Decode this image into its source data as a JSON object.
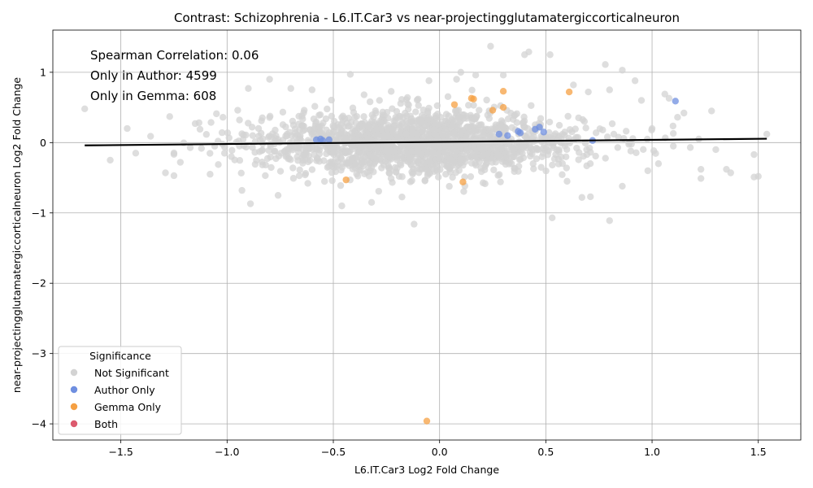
{
  "chart_data": {
    "type": "scatter",
    "title": "Contrast: Schizophrenia - L6.IT.Car3 vs near-projectingglutamatergiccorticalneuron",
    "xlabel": "L6.IT.Car3 Log2 Fold Change",
    "ylabel": "near-projectingglutamatergiccorticalneuron Log2 Fold Change",
    "xlim": [
      -1.82,
      1.7
    ],
    "ylim": [
      -4.23,
      1.6
    ],
    "xticks": [
      -1.5,
      -1.0,
      -0.5,
      0.0,
      0.5,
      1.0,
      1.5
    ],
    "xtick_labels": [
      "−1.5",
      "−1.0",
      "−0.5",
      "0.0",
      "0.5",
      "1.0",
      "1.5"
    ],
    "yticks": [
      -4,
      -3,
      -2,
      -1,
      0,
      1
    ],
    "ytick_labels": [
      "−4",
      "−3",
      "−2",
      "−1",
      "0",
      "1"
    ],
    "grid": true,
    "annotations": [
      "Spearman Correlation: 0.06",
      "Only in Author: 4599",
      "Only in Gemma: 608"
    ],
    "regression_line": {
      "x": [
        -1.67,
        1.54
      ],
      "y": [
        -0.04,
        0.055
      ],
      "color": "#000000"
    },
    "legend": {
      "title": "Significance",
      "placement": "lower-left",
      "entries": [
        {
          "label": "Not Significant",
          "color": "#d3d3d3"
        },
        {
          "label": "Author Only",
          "color": "#6f8fe0"
        },
        {
          "label": "Gemma Only",
          "color": "#f5a043"
        },
        {
          "label": "Both",
          "color": "#dc5a6e"
        }
      ]
    },
    "series": [
      {
        "name": "Not Significant",
        "color": "#d3d3d3",
        "cloud": {
          "n": 1800,
          "x_center": -0.1,
          "x_sd": 0.38,
          "y_center": 0.0,
          "y_sd": 0.24
        },
        "outliers": [
          [
            -1.67,
            0.48
          ],
          [
            -1.55,
            -0.25
          ],
          [
            -1.47,
            0.2
          ],
          [
            -1.43,
            -0.15
          ],
          [
            -1.36,
            0.09
          ],
          [
            -1.29,
            -0.43
          ],
          [
            -1.27,
            0.37
          ],
          [
            -1.22,
            -0.28
          ],
          [
            -1.15,
            0.27
          ],
          [
            -1.08,
            -0.45
          ],
          [
            -1.05,
            0.41
          ],
          [
            -0.98,
            -0.2
          ],
          [
            -0.95,
            0.46
          ],
          [
            -0.93,
            -0.68
          ],
          [
            -0.9,
            0.77
          ],
          [
            -0.89,
            -0.87
          ],
          [
            -0.82,
            -0.47
          ],
          [
            -0.8,
            0.9
          ],
          [
            -0.76,
            -0.75
          ],
          [
            -0.7,
            0.77
          ],
          [
            -0.62,
            -0.58
          ],
          [
            -0.6,
            0.75
          ],
          [
            -0.46,
            -0.9
          ],
          [
            -0.42,
            0.97
          ],
          [
            -0.32,
            -0.85
          ],
          [
            -0.12,
            -1.16
          ],
          [
            -0.05,
            0.88
          ],
          [
            0.08,
            0.9
          ],
          [
            0.1,
            1.0
          ],
          [
            0.17,
            0.96
          ],
          [
            0.24,
            1.37
          ],
          [
            0.3,
            0.96
          ],
          [
            0.4,
            1.25
          ],
          [
            0.42,
            1.29
          ],
          [
            0.52,
            1.25
          ],
          [
            0.53,
            -1.07
          ],
          [
            0.6,
            -0.55
          ],
          [
            0.63,
            0.82
          ],
          [
            0.67,
            -0.78
          ],
          [
            0.7,
            0.72
          ],
          [
            0.71,
            -0.77
          ],
          [
            0.78,
            1.11
          ],
          [
            0.8,
            -1.11
          ],
          [
            0.8,
            0.75
          ],
          [
            0.82,
            0.12
          ],
          [
            0.86,
            1.03
          ],
          [
            0.86,
            -0.62
          ],
          [
            0.9,
            -0.12
          ],
          [
            0.92,
            0.88
          ],
          [
            0.95,
            0.6
          ],
          [
            0.98,
            -0.4
          ],
          [
            1.0,
            0.2
          ],
          [
            1.03,
            -0.3
          ],
          [
            1.06,
            0.69
          ],
          [
            1.08,
            0.63
          ],
          [
            1.1,
            -0.05
          ],
          [
            1.12,
            0.36
          ],
          [
            1.15,
            0.42
          ],
          [
            1.18,
            -0.07
          ],
          [
            1.22,
            0.05
          ],
          [
            1.23,
            -0.38
          ],
          [
            1.23,
            -0.51
          ],
          [
            1.28,
            0.45
          ],
          [
            1.3,
            -0.1
          ],
          [
            1.35,
            -0.38
          ],
          [
            1.37,
            -0.43
          ],
          [
            1.48,
            -0.17
          ],
          [
            1.48,
            -0.49
          ],
          [
            1.5,
            -0.48
          ],
          [
            1.54,
            0.12
          ]
        ]
      },
      {
        "name": "Author Only",
        "color": "#6f8fe0",
        "points": [
          [
            -0.58,
            0.04
          ],
          [
            -0.56,
            0.05
          ],
          [
            -0.55,
            0.03
          ],
          [
            -0.52,
            0.04
          ],
          [
            0.28,
            0.12
          ],
          [
            0.32,
            0.1
          ],
          [
            0.37,
            0.16
          ],
          [
            0.38,
            0.14
          ],
          [
            0.45,
            0.19
          ],
          [
            0.47,
            0.22
          ],
          [
            0.49,
            0.15
          ],
          [
            0.72,
            0.03
          ],
          [
            1.11,
            0.59
          ]
        ]
      },
      {
        "name": "Gemma Only",
        "color": "#f5a043",
        "points": [
          [
            -0.44,
            -0.53
          ],
          [
            -0.06,
            -3.96
          ],
          [
            0.07,
            0.54
          ],
          [
            0.11,
            -0.56
          ],
          [
            0.15,
            0.63
          ],
          [
            0.16,
            0.62
          ],
          [
            0.25,
            0.46
          ],
          [
            0.3,
            0.73
          ],
          [
            0.3,
            0.5
          ],
          [
            0.61,
            0.72
          ]
        ]
      },
      {
        "name": "Both",
        "color": "#dc5a6e",
        "points": []
      }
    ]
  }
}
